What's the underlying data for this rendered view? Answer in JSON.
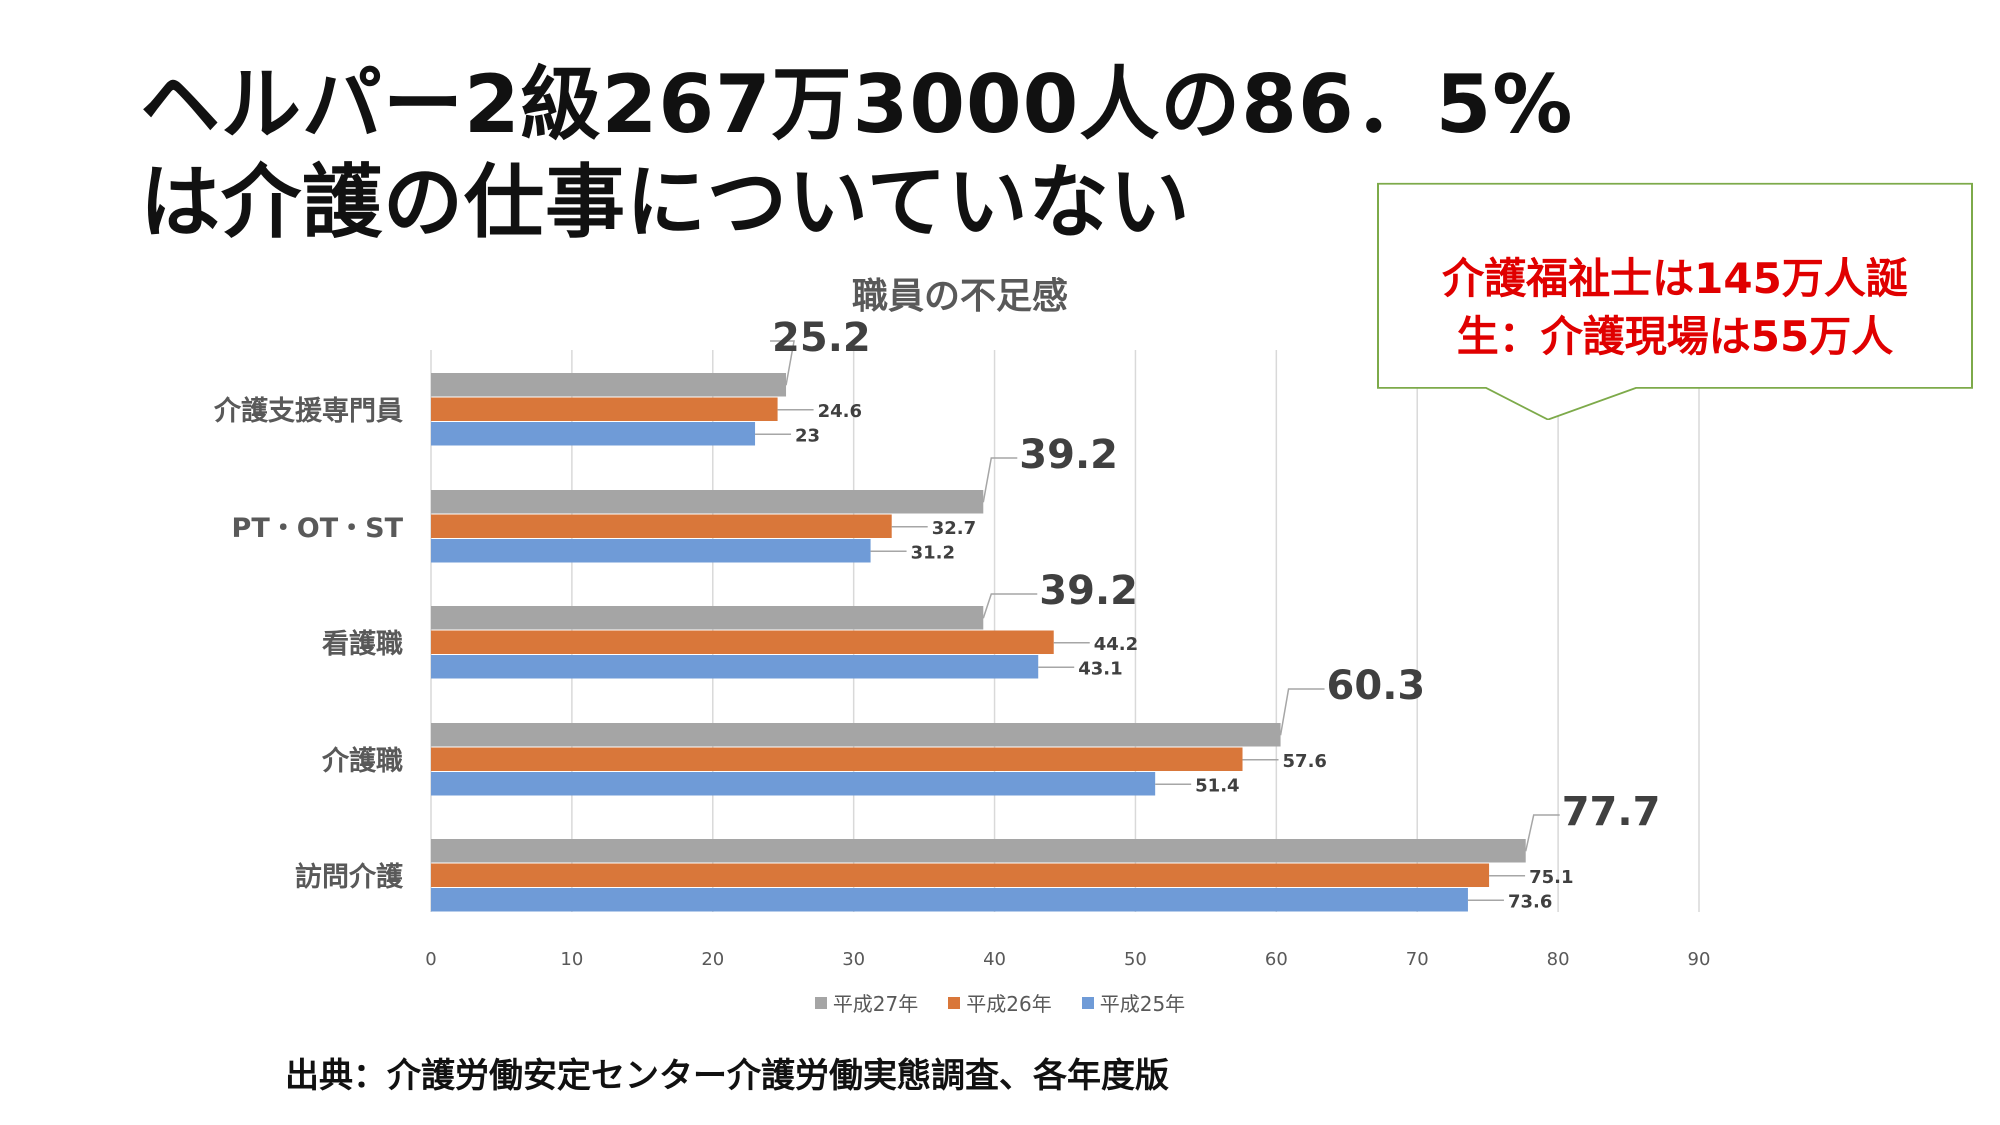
{
  "headline": {
    "line1": "ヘルパー2級267万3000人の86．5%",
    "line2": "は介護の仕事についていない"
  },
  "callout": {
    "line1": "介護福祉士は145万人誕",
    "line2": "生：介護現場は55万人"
  },
  "source": "出典：介護労働安定センター介護労働実態調査、各年度版",
  "chart_data": {
    "type": "bar",
    "orientation": "horizontal",
    "title": "職員の不足感",
    "categories": [
      "介護支援専門員",
      "PT・OT・ST",
      "看護職",
      "介護職",
      "訪問介護"
    ],
    "series": [
      {
        "name": "平成27年",
        "color": "#a5a5a5",
        "values": [
          25.2,
          39.2,
          39.2,
          60.3,
          77.7
        ]
      },
      {
        "name": "平成26年",
        "color": "#d9773a",
        "values": [
          24.6,
          32.7,
          44.2,
          57.6,
          75.1
        ]
      },
      {
        "name": "平成25年",
        "color": "#6f9bd7",
        "values": [
          23,
          31.2,
          43.1,
          51.4,
          73.6
        ]
      }
    ],
    "data_labels": [
      [
        "25.2",
        "39.2",
        "39.2",
        "60.3",
        "77.7"
      ],
      [
        "24.6",
        "32.7",
        "44.2",
        "57.6",
        "75.1"
      ],
      [
        "23",
        "31.2",
        "43.1",
        "51.4",
        "73.6"
      ]
    ],
    "xlim": [
      0,
      90
    ],
    "xticks": [
      "0",
      "10",
      "20",
      "30",
      "40",
      "50",
      "60",
      "70",
      "80",
      "90"
    ],
    "grid": true,
    "legend_position": "bottom"
  }
}
